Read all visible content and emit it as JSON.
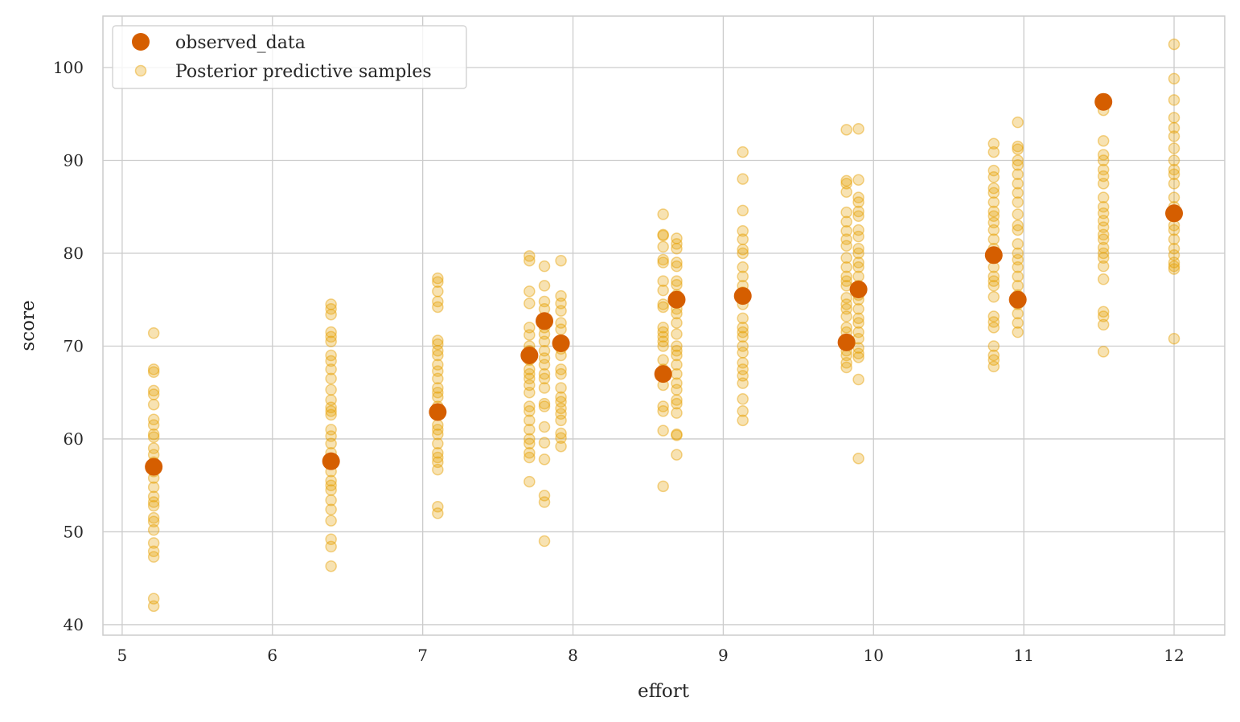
{
  "chart_data": {
    "type": "scatter",
    "title": "",
    "xlabel": "effort",
    "ylabel": "score",
    "xlim": [
      4.872,
      12.337
    ],
    "ylim": [
      38.87,
      105.54
    ],
    "xticks": [
      5,
      6,
      7,
      8,
      9,
      10,
      11,
      12
    ],
    "yticks": [
      40,
      50,
      60,
      70,
      80,
      90,
      100
    ],
    "grid": true,
    "legend_position": "top-left",
    "colors": {
      "observed": "#d55e00",
      "posterior": "#e69f00",
      "grid": "#cccccc",
      "axes": "#cccccc"
    },
    "legend": [
      "observed_data",
      "Posterior predictive samples"
    ],
    "observed": [
      {
        "x": 5.21,
        "y": 57.0
      },
      {
        "x": 6.39,
        "y": 57.6
      },
      {
        "x": 7.1,
        "y": 62.9
      },
      {
        "x": 7.71,
        "y": 69.0
      },
      {
        "x": 7.81,
        "y": 72.7
      },
      {
        "x": 7.92,
        "y": 70.3
      },
      {
        "x": 8.6,
        "y": 67.0
      },
      {
        "x": 8.69,
        "y": 75.0
      },
      {
        "x": 9.13,
        "y": 75.4
      },
      {
        "x": 9.82,
        "y": 70.4
      },
      {
        "x": 9.9,
        "y": 76.1
      },
      {
        "x": 10.8,
        "y": 79.8
      },
      {
        "x": 10.96,
        "y": 75.0
      },
      {
        "x": 11.53,
        "y": 96.3
      },
      {
        "x": 12.0,
        "y": 84.3
      }
    ],
    "posterior_samples": [
      {
        "x": 5.21,
        "y": [
          71.4,
          67.5,
          67.2,
          65.2,
          64.8,
          63.7,
          62.1,
          61.5,
          60.5,
          60.2,
          59,
          58.3,
          57.5,
          56.5,
          55.8,
          54.8,
          53.8,
          53.2,
          52.8,
          51.5,
          51.1,
          50.2,
          48.8,
          47.9,
          47.3,
          42.8,
          42.0
        ]
      },
      {
        "x": 6.39,
        "y": [
          74.5,
          74,
          73.4,
          71.5,
          71,
          70.5,
          69,
          68.4,
          67.5,
          66.5,
          65.3,
          64.2,
          63.4,
          63,
          62.6,
          61,
          60.3,
          59.5,
          58.5,
          57.5,
          56.5,
          55.5,
          55,
          54.5,
          53.4,
          52.4,
          51.2,
          49.2,
          48.4,
          46.3
        ]
      },
      {
        "x": 7.1,
        "y": [
          77.3,
          76.9,
          75.9,
          74.8,
          74.2,
          70.6,
          70.2,
          69.5,
          69,
          68,
          67.3,
          66.5,
          65.5,
          65,
          64.5,
          63.5,
          61.5,
          61,
          60.5,
          59.5,
          58.5,
          58,
          57.5,
          56.7,
          52.7,
          52.0
        ]
      },
      {
        "x": 7.71,
        "y": [
          79.7,
          79.2,
          75.9,
          74.6,
          72,
          71.2,
          70,
          69.5,
          68.5,
          67.5,
          67,
          66.5,
          65.8,
          65,
          63.5,
          63,
          62,
          61,
          60,
          59.5,
          58.5,
          58,
          55.4
        ]
      },
      {
        "x": 7.81,
        "y": [
          78.6,
          76.5,
          74.8,
          74,
          73,
          72,
          71.3,
          70.5,
          69.5,
          68.7,
          68,
          67,
          66.5,
          65.5,
          63.8,
          63.5,
          61.3,
          59.6,
          57.8,
          53.9,
          53.2,
          49.0
        ]
      },
      {
        "x": 7.92,
        "y": [
          79.2,
          75.4,
          74.6,
          73.8,
          72.5,
          71.8,
          70.5,
          69.7,
          69,
          67.5,
          67,
          65.5,
          64.5,
          64,
          63.3,
          62.7,
          62,
          60.6,
          60.1,
          59.2
        ]
      },
      {
        "x": 8.6,
        "y": [
          84.2,
          82,
          81.9,
          80.7,
          79.3,
          79,
          77,
          76,
          74.5,
          74.2,
          72,
          71.5,
          71,
          70.5,
          70,
          68.5,
          67.5,
          65.8,
          63.5,
          63,
          60.9,
          54.9
        ]
      },
      {
        "x": 8.69,
        "y": [
          81.6,
          81,
          80.5,
          79,
          78.6,
          77,
          76.6,
          75.5,
          74,
          73.5,
          72.5,
          71.3,
          70,
          69.5,
          69,
          68,
          67,
          66,
          65.3,
          64.2,
          63.8,
          62.8,
          60.5,
          60.4,
          58.3
        ]
      },
      {
        "x": 9.13,
        "y": [
          90.9,
          88,
          84.6,
          82.4,
          81.5,
          80.4,
          80,
          78.5,
          77.5,
          76.5,
          75.8,
          74.5,
          73,
          72,
          71.5,
          71,
          70,
          69.3,
          68.2,
          67.5,
          66.8,
          66,
          64.3,
          63,
          62
        ]
      },
      {
        "x": 9.82,
        "y": [
          93.3,
          87.8,
          87.5,
          86.6,
          84.4,
          83.4,
          82.4,
          81.5,
          80.8,
          79.5,
          78.5,
          77.5,
          77,
          76.5,
          75.2,
          74.5,
          74,
          73.2,
          72,
          71.5,
          70.5,
          69.5,
          69,
          68.2,
          67.7
        ]
      },
      {
        "x": 9.9,
        "y": [
          93.4,
          87.9,
          86,
          85.5,
          84.5,
          84,
          82.5,
          81.8,
          80.5,
          80,
          79,
          78.5,
          77.5,
          76.5,
          75.5,
          75,
          74,
          73,
          72.5,
          71.5,
          70.8,
          69.8,
          69.2,
          68.8,
          66.4,
          57.9
        ]
      },
      {
        "x": 10.8,
        "y": [
          91.8,
          90.9,
          88.9,
          88.2,
          87,
          86.5,
          85.5,
          84.5,
          84,
          83.3,
          82.5,
          81.5,
          80.5,
          79.5,
          78.5,
          77.5,
          77,
          76.5,
          75.3,
          73.2,
          72.6,
          72,
          70,
          69,
          68.5,
          67.8
        ]
      },
      {
        "x": 10.96,
        "y": [
          94.1,
          91.5,
          91.2,
          90,
          89.5,
          88.5,
          87.5,
          86.5,
          85.5,
          84.2,
          83,
          82.5,
          81,
          80,
          79.3,
          78.5,
          77.5,
          76.5,
          75.5,
          74.5,
          73.5,
          72.5,
          71.5
        ]
      },
      {
        "x": 11.53,
        "y": [
          95.4,
          92.1,
          90.6,
          90,
          89,
          88.3,
          87.5,
          86,
          85,
          84.3,
          83.5,
          82.8,
          82,
          81.5,
          80.6,
          80,
          79.5,
          78.6,
          77.2,
          73.7,
          73.2,
          72.3,
          69.4
        ]
      },
      {
        "x": 12.0,
        "y": [
          102.5,
          98.8,
          96.5,
          94.6,
          93.5,
          92.6,
          91.3,
          90,
          89,
          88.5,
          87.5,
          86,
          85,
          84.2,
          83,
          82.5,
          81.5,
          80.5,
          79.8,
          79,
          78.6,
          78.3,
          70.8
        ]
      }
    ]
  }
}
